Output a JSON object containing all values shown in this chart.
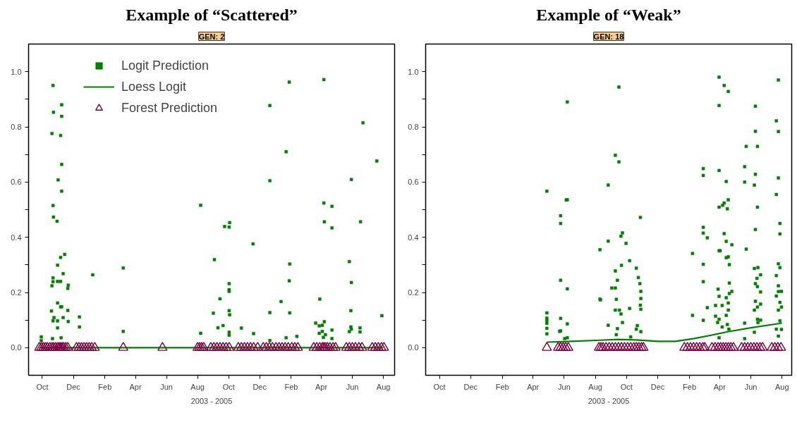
{
  "chart_data": [
    {
      "type": "scatter",
      "title": "Example of “Scattered”",
      "subtitle": "GEN: 2",
      "xlabel": "2003 - 2005",
      "legend": "top left",
      "grid": false,
      "xlim": [
        "2003-09-04",
        "2005-08-23"
      ],
      "ylim": [
        -0.1,
        1.1
      ],
      "xticks": [
        {
          "value": "2003-10-01",
          "label": "Oct"
        },
        {
          "value": "2003-12-01",
          "label": "Dec"
        },
        {
          "value": "2004-02-01",
          "label": "Feb"
        },
        {
          "value": "2004-04-01",
          "label": "Apr"
        },
        {
          "value": "2004-06-01",
          "label": "Jun"
        },
        {
          "value": "2004-08-01",
          "label": "Aug"
        },
        {
          "value": "2004-10-01",
          "label": "Oct"
        },
        {
          "value": "2004-12-01",
          "label": "Dec"
        },
        {
          "value": "2005-02-01",
          "label": "Feb"
        },
        {
          "value": "2005-04-01",
          "label": "Apr"
        },
        {
          "value": "2005-06-01",
          "label": "Jun"
        },
        {
          "value": "2005-08-01",
          "label": "Aug"
        }
      ],
      "yticks": [
        {
          "value": 0,
          "label": "0.0"
        },
        {
          "value": 0.1,
          "label": null
        },
        0.2,
        {
          "value": 0.3,
          "label": null
        },
        0.4,
        {
          "value": 0.5,
          "label": null
        },
        0.6,
        {
          "value": 0.7,
          "label": null
        },
        0.8,
        {
          "value": 0.9,
          "label": null
        },
        {
          "value": 1,
          "label": "1.0"
        }
      ],
      "series": [
        {
          "name": "Logit Prediction",
          "marker": "square",
          "color": "#008000",
          "x": [
            "2003-10-22",
            "2003-10-23",
            "2003-10-20",
            "2003-11-08",
            "2003-11-08",
            "2003-11-06",
            "2003-11-08",
            "2003-11-01",
            "2003-11-08",
            "2003-10-22",
            "2003-10-23",
            "2003-10-30",
            "2003-11-14",
            "2003-11-06",
            "2003-10-31",
            "2003-11-11",
            "2003-10-22",
            "2003-10-22",
            "2003-10-31",
            "2003-11-06",
            "2003-10-20",
            "2003-11-21",
            "2003-11-20",
            "2004-01-08",
            "2004-03-08",
            "2004-03-08",
            "2003-10-31",
            "2003-11-06",
            "2003-11-08",
            "2003-10-19",
            "2003-11-20",
            "2003-12-13",
            "2003-12-13",
            "2003-10-24",
            "2003-11-11",
            "2003-10-22",
            "2003-10-31",
            "2003-11-21",
            "2003-10-31",
            "2003-09-29",
            "2003-09-29",
            "2003-10-21",
            "2003-11-07",
            "2004-08-07",
            "2004-08-07",
            "2004-09-03",
            "2004-09-14",
            "2004-09-01",
            "2004-09-20",
            "2004-09-10",
            "2004-09-23",
            "2004-10-03",
            "2004-10-02",
            "2004-10-02",
            "2004-10-02",
            "2004-10-02",
            "2004-10-02",
            "2004-10-03",
            "2004-10-02",
            "2004-10-02",
            "2004-11-18",
            "2004-10-26",
            "2004-11-19",
            "2004-12-21",
            "2004-12-21",
            "2004-12-21",
            "2004-12-21",
            "2005-01-22",
            "2005-01-28",
            "2005-01-29",
            "2005-01-28",
            "2005-01-29",
            "2005-01-12",
            "2005-01-22",
            "2005-02-12",
            "2005-04-06",
            "2005-04-06",
            "2005-04-22",
            "2005-04-07",
            "2005-04-22",
            "2005-03-29",
            "2005-03-21",
            "2005-03-28",
            "2005-04-03",
            "2005-04-07",
            "2005-04-03",
            "2005-03-28",
            "2005-04-09",
            "2005-04-05",
            "2005-04-22",
            "2005-04-22",
            "2005-06-22",
            "2005-05-30",
            "2005-06-17",
            "2005-05-26",
            "2005-05-30",
            "2005-05-29",
            "2005-05-29",
            "2005-05-30",
            "2005-05-26",
            "2005-06-16",
            "2005-06-16",
            "2005-07-19",
            "2005-07-29"
          ],
          "values": [
            0.95,
            0.853,
            0.776,
            0.88,
            0.838,
            0.769,
            0.664,
            0.608,
            0.567,
            0.515,
            0.473,
            0.458,
            0.338,
            0.327,
            0.299,
            0.268,
            0.253,
            0.239,
            0.24,
            0.24,
            0.224,
            0.226,
            0.215,
            0.264,
            0.289,
            0.059,
            0.162,
            0.148,
            0.148,
            0.133,
            0.135,
            0.111,
            0.075,
            0.109,
            0.109,
            0.097,
            0.097,
            0.095,
            0.072,
            0.039,
            0.026,
            0.033,
            0.036,
            0.516,
            0.052,
            0.319,
            0.177,
            0.125,
            0.08,
            0.072,
            0.439,
            0.453,
            0.437,
            0.232,
            0.21,
            0.204,
            0.134,
            0.119,
            0.056,
            0.045,
            0.376,
            0.071,
            0.051,
            0.877,
            0.605,
            0.127,
            0.026,
            0.71,
            0.962,
            0.303,
            0.242,
            0.126,
            0.167,
            0.036,
            0.041,
            0.971,
            0.524,
            0.512,
            0.456,
            0.434,
            0.176,
            0.089,
            0.079,
            0.081,
            0.094,
            0.059,
            0.052,
            0.047,
            0.037,
            0.064,
            0.033,
            0.815,
            0.609,
            0.456,
            0.312,
            0.236,
            0.134,
            0.075,
            0.067,
            0.058,
            0.072,
            0.057,
            0.676,
            0.116
          ]
        },
        {
          "name": "Loess Logit",
          "type": "line",
          "color": "#008000",
          "x": [
            "2003-09-25",
            "2005-08-01"
          ],
          "values": [
            0,
            0
          ]
        },
        {
          "name": "Forest Prediction",
          "marker": "triangle",
          "color": "#7f0040",
          "x": [
            "2003-09-25",
            "2003-09-29",
            "2003-10-03",
            "2003-10-07",
            "2003-10-11",
            "2003-10-16",
            "2003-10-20",
            "2003-10-23",
            "2003-10-27",
            "2003-10-31",
            "2003-11-03",
            "2003-11-06",
            "2003-11-09",
            "2003-11-12",
            "2003-11-16",
            "2003-11-20",
            "2003-12-07",
            "2003-12-12",
            "2003-12-17",
            "2003-12-22",
            "2003-12-27",
            "2004-01-01",
            "2004-01-06",
            "2004-01-12",
            "2004-03-08",
            "2004-05-24",
            "2004-08-01",
            "2004-08-05",
            "2004-08-09",
            "2004-08-13",
            "2004-08-27",
            "2004-09-02",
            "2004-09-08",
            "2004-09-14",
            "2004-09-20",
            "2004-09-26",
            "2004-10-02",
            "2004-10-20",
            "2004-10-26",
            "2004-11-01",
            "2004-11-07",
            "2004-11-13",
            "2004-11-19",
            "2004-11-27",
            "2004-12-08",
            "2004-12-14",
            "2004-12-20",
            "2004-12-26",
            "2005-01-02",
            "2005-01-08",
            "2005-01-14",
            "2005-01-20",
            "2005-01-26",
            "2005-02-02",
            "2005-02-08",
            "2005-02-14",
            "2005-03-17",
            "2005-03-23",
            "2005-03-29",
            "2005-04-03",
            "2005-04-06",
            "2005-04-09",
            "2005-04-13",
            "2005-04-18",
            "2005-04-24",
            "2005-04-29",
            "2005-05-20",
            "2005-05-26",
            "2005-06-01",
            "2005-06-07",
            "2005-06-14",
            "2005-06-20",
            "2005-07-10",
            "2005-07-16",
            "2005-07-22",
            "2005-07-28",
            "2005-08-02"
          ],
          "values": [
            0,
            0,
            0,
            0,
            0,
            0,
            0,
            0,
            0,
            0,
            0,
            0,
            0,
            0,
            0,
            0,
            0,
            0,
            0,
            0,
            0,
            0,
            0,
            0,
            0,
            0,
            0,
            0,
            0,
            0,
            0,
            0,
            0,
            0,
            0,
            0,
            0,
            0,
            0,
            0,
            0,
            0,
            0,
            0,
            0,
            0,
            0,
            0,
            0,
            0,
            0,
            0,
            0,
            0,
            0,
            0,
            0,
            0,
            0,
            0,
            0,
            0,
            0,
            0,
            0,
            0,
            0,
            0,
            0,
            0,
            0,
            0,
            0,
            0,
            0,
            0,
            0
          ]
        }
      ]
    },
    {
      "type": "scatter",
      "title": "Example of “Weak”",
      "subtitle": "GEN: 18",
      "xlabel": "2003 - 2005",
      "grid": false,
      "xlim": [
        "2003-09-04",
        "2005-08-20"
      ],
      "ylim": [
        -0.1,
        1.1
      ],
      "xticks": [
        {
          "value": "2003-10-01",
          "label": "Oct"
        },
        {
          "value": "2003-12-01",
          "label": "Dec"
        },
        {
          "value": "2004-02-01",
          "label": "Feb"
        },
        {
          "value": "2004-04-01",
          "label": "Apr"
        },
        {
          "value": "2004-06-01",
          "label": "Jun"
        },
        {
          "value": "2004-08-01",
          "label": "Aug"
        },
        {
          "value": "2004-10-01",
          "label": "Oct"
        },
        {
          "value": "2004-12-01",
          "label": "Dec"
        },
        {
          "value": "2005-02-01",
          "label": "Feb"
        },
        {
          "value": "2005-04-01",
          "label": "Apr"
        },
        {
          "value": "2005-06-01",
          "label": "Jun"
        },
        {
          "value": "2005-08-01",
          "label": "Aug"
        }
      ],
      "yticks": [
        {
          "value": 0,
          "label": "0.0"
        },
        {
          "value": 0.1,
          "label": null
        },
        0.2,
        {
          "value": 0.3,
          "label": null
        },
        0.4,
        {
          "value": 0.5,
          "label": null
        },
        0.6,
        {
          "value": 0.7,
          "label": null
        },
        0.8,
        {
          "value": 0.9,
          "label": null
        },
        {
          "value": 1,
          "label": "1.0"
        }
      ],
      "series": [
        {
          "marker": "square",
          "color": "#008000",
          "x": [
            "2004-04-28",
            "2004-04-28",
            "2004-04-28",
            "2004-04-28",
            "2004-04-28",
            "2004-04-28",
            "2004-04-28",
            "2004-05-25",
            "2004-05-25",
            "2004-05-25",
            "2004-05-25",
            "2004-05-23",
            "2004-05-25",
            "2004-06-07",
            "2004-06-07",
            "2004-06-05",
            "2004-06-07",
            "2004-06-07",
            "2004-06-07",
            "2004-06-02",
            "2004-08-10",
            "2004-08-10",
            "2004-08-11",
            "2004-08-26",
            "2004-08-26",
            "2004-08-26",
            "2004-09-02",
            "2004-09-09",
            "2004-09-16",
            "2004-09-16",
            "2004-09-09",
            "2004-09-09",
            "2004-09-13",
            "2004-09-11",
            "2004-09-09",
            "2004-09-17",
            "2004-09-20",
            "2004-09-23",
            "2004-09-20",
            "2004-09-30",
            "2004-09-21",
            "2004-10-07",
            "2004-10-07",
            "2004-09-23",
            "2004-09-13",
            "2004-09-11",
            "2004-10-09",
            "2004-10-28",
            "2004-10-20",
            "2004-10-24",
            "2004-10-27",
            "2004-10-29",
            "2004-10-29",
            "2004-10-28",
            "2004-10-29",
            "2004-10-22",
            "2004-10-29",
            "2004-10-20",
            "2005-02-07",
            "2005-02-07",
            "2005-02-28",
            "2005-02-28",
            "2005-02-28",
            "2005-02-28",
            "2005-03-08",
            "2005-02-28",
            "2005-02-28",
            "2005-02-28",
            "2005-03-08",
            "2005-03-31",
            "2005-04-10",
            "2005-04-18",
            "2005-03-31",
            "2005-03-31",
            "2005-04-14",
            "2005-04-18",
            "2005-04-10",
            "2005-04-07",
            "2005-03-31",
            "2005-04-16",
            "2005-04-10",
            "2005-04-14",
            "2005-04-25",
            "2005-03-31",
            "2005-04-02",
            "2005-04-18",
            "2005-04-14",
            "2005-04-20",
            "2005-04-20",
            "2005-03-29",
            "2005-04-25",
            "2005-04-20",
            "2005-03-31",
            "2005-04-14",
            "2005-03-24",
            "2005-04-06",
            "2005-04-18",
            "2005-04-18",
            "2005-03-24",
            "2005-03-31",
            "2005-04-14",
            "2005-03-28",
            "2005-04-06",
            "2005-04-16",
            "2005-04-19",
            "2005-03-31",
            "2005-05-23",
            "2005-05-20",
            "2005-05-20",
            "2005-05-23",
            "2005-05-20",
            "2005-05-20",
            "2005-06-10",
            "2005-06-10",
            "2005-06-14",
            "2005-06-10",
            "2005-06-08",
            "2005-06-14",
            "2005-06-10",
            "2005-06-08",
            "2005-06-15",
            "2005-06-13",
            "2005-06-10",
            "2005-06-14",
            "2005-06-20",
            "2005-06-20",
            "2005-06-10",
            "2005-06-14",
            "2005-06-20",
            "2005-06-08",
            "2005-06-14",
            "2005-06-20",
            "2005-06-15",
            "2005-06-08",
            "2005-07-25",
            "2005-07-21",
            "2005-07-25",
            "2005-07-25",
            "2005-07-21",
            "2005-07-28",
            "2005-07-28",
            "2005-07-25",
            "2005-07-28",
            "2005-07-21",
            "2005-07-25",
            "2005-07-31",
            "2005-07-25",
            "2005-07-21",
            "2005-07-28",
            "2005-07-31",
            "2005-07-25",
            "2005-07-28",
            "2005-07-31",
            "2005-07-21",
            "2005-07-25"
          ],
          "values": [
            0.567,
            0.126,
            0.107,
            0.098,
            0.088,
            0.07,
            0.05,
            0.478,
            0.45,
            0.244,
            0.106,
            0.059,
            0.061,
            0.89,
            0.536,
            0.535,
            0.213,
            0.086,
            0.036,
            0.033,
            0.355,
            0.176,
            0.173,
            0.589,
            0.386,
            0.081,
            0.216,
            0.697,
            0.944,
            0.673,
            0.278,
            0.216,
            0.244,
            0.175,
            0.136,
            0.136,
            0.122,
            0.416,
            0.404,
            0.378,
            0.298,
            0.315,
            0.142,
            0.091,
            0.069,
            0.047,
            0.039,
            0.472,
            0.288,
            0.254,
            0.232,
            0.204,
            0.178,
            0.154,
            0.139,
            0.08,
            0.058,
            0.067,
            0.341,
            0.117,
            0.649,
            0.624,
            0.436,
            0.415,
            0.398,
            0.302,
            0.239,
            0.099,
            0.145,
            0.98,
            0.95,
            0.928,
            0.877,
            0.642,
            0.602,
            0.536,
            0.524,
            0.516,
            0.509,
            0.503,
            0.413,
            0.385,
            0.373,
            0.351,
            0.351,
            0.329,
            0.326,
            0.301,
            0.234,
            0.212,
            0.204,
            0.196,
            0.186,
            0.181,
            0.153,
            0.153,
            0.162,
            0.136,
            0.114,
            0.103,
            0.117,
            0.091,
            0.075,
            0.084,
            0.067,
            0.036,
            0.729,
            0.656,
            0.6,
            0.357,
            0.089,
            0.033,
            0.875,
            0.784,
            0.729,
            0.628,
            0.589,
            0.509,
            0.428,
            0.287,
            0.29,
            0.251,
            0.232,
            0.221,
            0.264,
            0.202,
            0.168,
            0.147,
            0.158,
            0.136,
            0.103,
            0.1,
            0.091,
            0.056,
            0.97,
            0.822,
            0.783,
            0.615,
            0.555,
            0.45,
            0.412,
            0.304,
            0.29,
            0.261,
            0.224,
            0.204,
            0.203,
            0.187,
            0.164,
            0.147,
            0.136,
            0.097,
            0.066,
            0.067,
            0.042
          ]
        },
        {
          "type": "line",
          "color": "#008000",
          "x": [
            "2004-04-28",
            "2004-06-15",
            "2004-08-10",
            "2004-09-15",
            "2004-10-20",
            "2004-12-01",
            "2005-01-05",
            "2005-02-10",
            "2005-03-15",
            "2005-04-15",
            "2005-06-01",
            "2005-08-01"
          ],
          "values": [
            0.02,
            0.023,
            0.027,
            0.03,
            0.028,
            0.023,
            0.023,
            0.033,
            0.045,
            0.057,
            0.072,
            0.089
          ]
        },
        {
          "marker": "triangle",
          "color": "#7f0040",
          "x": [
            "2004-04-28",
            "2004-05-20",
            "2004-05-25",
            "2004-05-30",
            "2004-06-04",
            "2004-06-09",
            "2004-08-08",
            "2004-08-12",
            "2004-08-16",
            "2004-08-22",
            "2004-08-28",
            "2004-09-03",
            "2004-09-09",
            "2004-09-15",
            "2004-09-21",
            "2004-09-27",
            "2004-10-03",
            "2004-10-09",
            "2004-10-15",
            "2004-10-20",
            "2004-10-25",
            "2004-10-30",
            "2004-11-03",
            "2005-01-22",
            "2005-01-28",
            "2005-02-03",
            "2005-02-09",
            "2005-02-15",
            "2005-02-21",
            "2005-02-27",
            "2005-03-03",
            "2005-03-17",
            "2005-03-23",
            "2005-03-29",
            "2005-04-03",
            "2005-04-08",
            "2005-04-13",
            "2005-04-18",
            "2005-04-23",
            "2005-04-28",
            "2005-05-14",
            "2005-05-20",
            "2005-05-26",
            "2005-06-01",
            "2005-06-07",
            "2005-06-13",
            "2005-06-19",
            "2005-06-24",
            "2005-07-12",
            "2005-07-18",
            "2005-07-24",
            "2005-07-30"
          ],
          "values": [
            0,
            0,
            0,
            0,
            0,
            0,
            0,
            0,
            0,
            0,
            0,
            0,
            0,
            0,
            0,
            0,
            0,
            0,
            0,
            0,
            0,
            0,
            0,
            0,
            0,
            0,
            0,
            0,
            0,
            0,
            0,
            0,
            0,
            0,
            0,
            0,
            0,
            0,
            0,
            0,
            0,
            0,
            0,
            0,
            0,
            0,
            0,
            0,
            0,
            0,
            0,
            0
          ]
        }
      ]
    }
  ]
}
